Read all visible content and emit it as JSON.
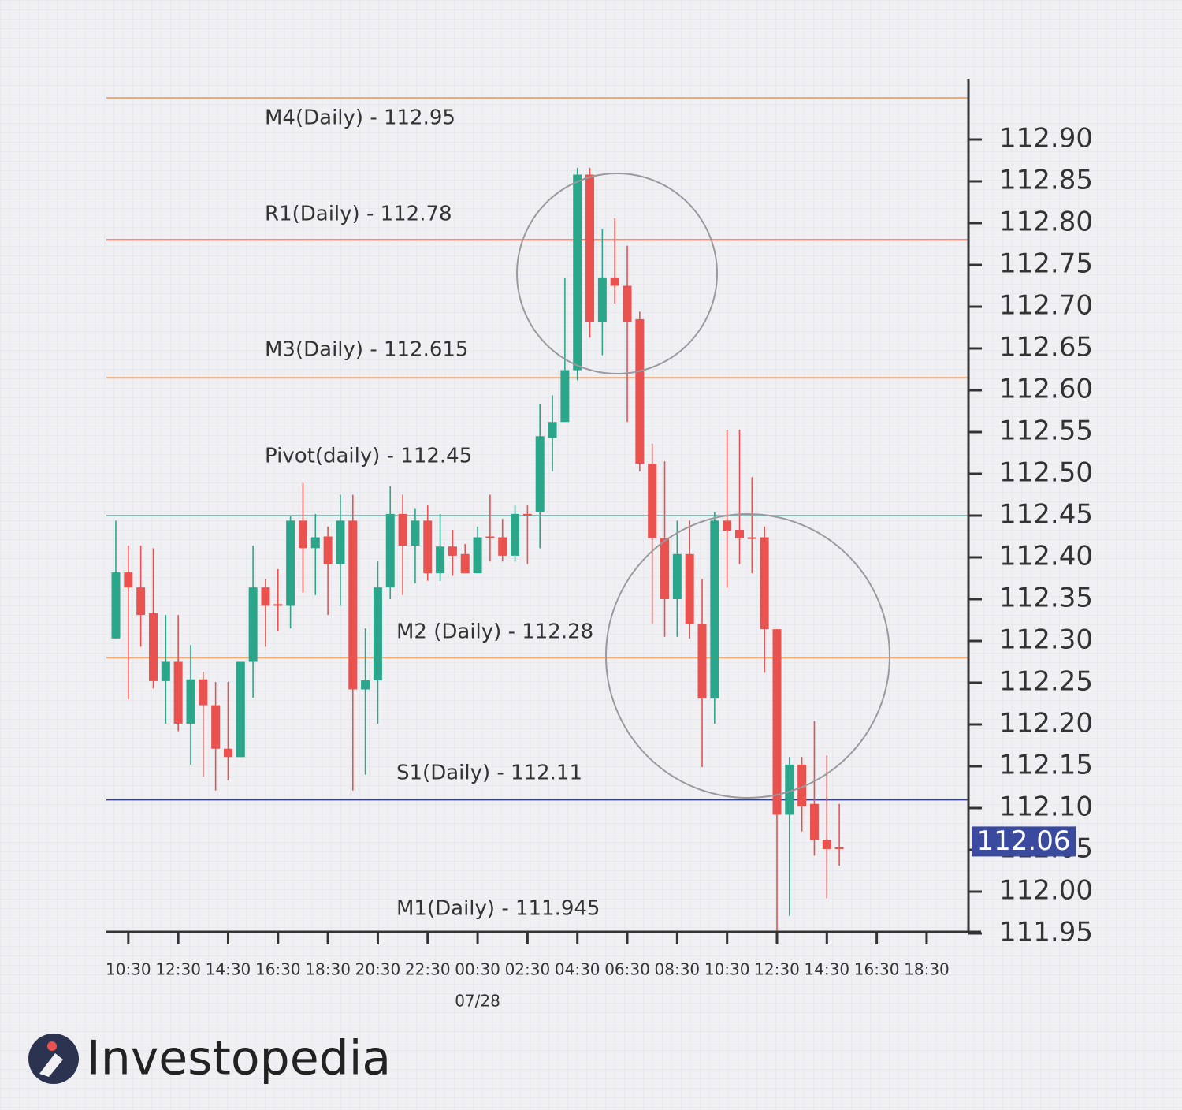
{
  "chart_data": {
    "type": "candlestick",
    "categories": [
      null,
      "10:30",
      null,
      null,
      null,
      "12:30",
      null,
      null,
      null,
      "14:30",
      null,
      null,
      null,
      "16:30",
      null,
      null,
      null,
      "18:30",
      null,
      null,
      null,
      "20:30",
      null,
      null,
      null,
      "22:30",
      null,
      null,
      null,
      "00:30",
      null,
      null,
      null,
      "02:30",
      null,
      null,
      null,
      "04:30",
      null,
      null,
      null,
      "06:30",
      null,
      null,
      null,
      "08:30",
      null,
      null,
      null,
      "10:30",
      null,
      null,
      null,
      "12:30",
      null,
      null,
      null,
      "14:30",
      null,
      null,
      null,
      "16:30",
      null,
      null,
      null,
      "18:30"
    ],
    "open": [
      112.303,
      112.382,
      112.364,
      112.333,
      112.252,
      112.275,
      112.201,
      112.254,
      112.223,
      112.171,
      112.161,
      112.275,
      112.364,
      112.344,
      112.342,
      112.444,
      112.411,
      112.425,
      112.392,
      112.444,
      112.242,
      112.253,
      112.364,
      112.452,
      112.414,
      112.444,
      112.381,
      112.413,
      112.404,
      112.381,
      112.425,
      112.424,
      112.402,
      112.452,
      112.454,
      112.543,
      112.562,
      112.624,
      112.858,
      112.682,
      112.735,
      112.725,
      112.685,
      112.512,
      112.423,
      112.35,
      112.404,
      112.32,
      112.231,
      112.444,
      112.433,
      112.424,
      112.424,
      112.314,
      112.092,
      112.152,
      112.105,
      112.062,
      112.053,
      null,
      null,
      null,
      null,
      null,
      null,
      null
    ],
    "high": [
      112.444,
      112.414,
      112.414,
      112.411,
      112.331,
      112.331,
      112.295,
      112.263,
      112.251,
      112.251,
      112.275,
      112.414,
      112.374,
      112.386,
      112.449,
      112.489,
      112.452,
      112.437,
      112.475,
      112.475,
      112.315,
      112.395,
      112.485,
      112.475,
      112.458,
      112.463,
      112.452,
      112.433,
      112.416,
      112.437,
      112.475,
      112.446,
      112.463,
      112.463,
      112.584,
      112.594,
      112.735,
      112.866,
      112.866,
      112.793,
      112.806,
      112.773,
      112.694,
      112.536,
      112.515,
      112.444,
      112.444,
      112.374,
      112.454,
      112.553,
      112.553,
      112.496,
      112.437,
      112.314,
      112.161,
      112.161,
      112.204,
      112.163,
      112.105,
      null,
      null,
      null,
      null,
      null,
      null,
      null
    ],
    "low": [
      112.303,
      112.23,
      112.293,
      112.243,
      112.201,
      112.192,
      112.152,
      112.138,
      112.121,
      112.133,
      112.161,
      112.232,
      112.293,
      112.312,
      112.315,
      112.358,
      112.355,
      112.331,
      112.342,
      112.121,
      112.14,
      112.201,
      112.35,
      112.355,
      112.369,
      112.372,
      112.372,
      112.378,
      112.381,
      112.381,
      112.395,
      112.395,
      112.395,
      112.392,
      112.411,
      112.503,
      112.562,
      112.612,
      112.663,
      112.642,
      112.704,
      112.562,
      112.503,
      112.32,
      112.305,
      112.305,
      112.303,
      112.149,
      112.201,
      112.364,
      112.392,
      112.381,
      112.262,
      111.95,
      111.971,
      112.072,
      112.043,
      111.992,
      112.031,
      null,
      null,
      null,
      null,
      null,
      null,
      null
    ],
    "close": [
      112.382,
      112.364,
      112.331,
      112.252,
      112.275,
      112.201,
      112.254,
      112.223,
      112.171,
      112.161,
      112.275,
      112.364,
      112.342,
      112.342,
      112.444,
      112.411,
      112.424,
      112.392,
      112.444,
      112.242,
      112.253,
      112.364,
      112.452,
      112.414,
      112.444,
      112.381,
      112.413,
      112.402,
      112.381,
      112.424,
      112.424,
      112.402,
      112.452,
      112.45,
      112.545,
      112.562,
      112.624,
      112.858,
      112.682,
      112.735,
      112.725,
      112.682,
      112.512,
      112.423,
      112.35,
      112.404,
      112.32,
      112.231,
      112.444,
      112.432,
      112.423,
      112.422,
      112.314,
      112.092,
      112.152,
      112.102,
      112.062,
      112.051,
      112.051,
      null,
      null,
      null,
      null,
      null,
      null,
      null
    ],
    "up_color": "#2ba68a",
    "down_color": "#e9524f",
    "ylim": [
      111.95,
      112.97
    ],
    "yticks": [
      111.95,
      {
        "value": 112.0,
        "label": "112.00"
      },
      112.05,
      {
        "value": 112.1,
        "label": "112.10"
      },
      112.15,
      {
        "value": 112.2,
        "label": "112.20"
      },
      112.25,
      {
        "value": 112.3,
        "label": "112.30"
      },
      112.35,
      {
        "value": 112.4,
        "label": "112.40"
      },
      112.45,
      {
        "value": 112.5,
        "label": "112.50"
      },
      112.55,
      {
        "value": 112.6,
        "label": "112.60"
      },
      112.65,
      {
        "value": 112.7,
        "label": "112.70"
      },
      112.75,
      {
        "value": 112.8,
        "label": "112.80"
      },
      112.85,
      {
        "value": 112.9,
        "label": "112.90"
      }
    ],
    "levels": [
      {
        "label": "M4(Daily) - 112.95",
        "value": 112.95,
        "color": "#f6a96e"
      },
      {
        "label": "R1(Daily) - 112.78",
        "value": 112.78,
        "color": "#e9705f"
      },
      {
        "label": "M3(Daily) - 112.615",
        "value": 112.615,
        "color": "#f6a96e"
      },
      {
        "label": "Pivot(daily) - 112.45",
        "value": 112.45,
        "color": "#85bdb9"
      },
      {
        "label": "M2 (Daily) - 112.28",
        "value": 112.28,
        "color": "#f6a96e"
      },
      {
        "label": "S1(Daily) - 112.11",
        "value": 112.11,
        "color": "#37418c"
      },
      {
        "label": "M1(Daily) - 111.945",
        "value": 111.945
      }
    ],
    "last_price": 112.06,
    "last_price_color": "#3a4a9e",
    "date_label": "07/28"
  },
  "brand": "Investopedia"
}
